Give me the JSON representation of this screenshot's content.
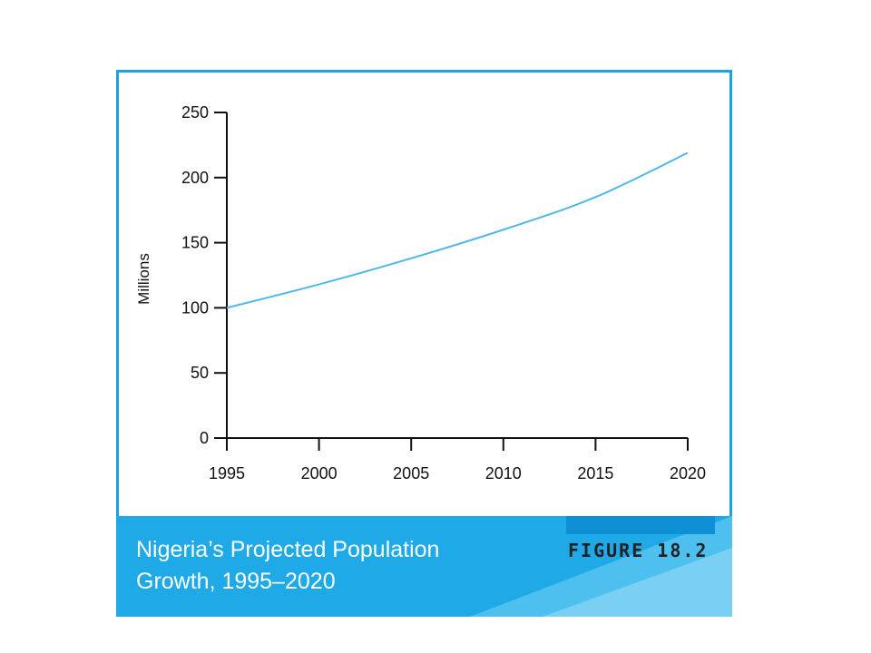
{
  "caption": {
    "line1": "Nigeria’s Projected Population",
    "line2": "Growth, 1995–2020"
  },
  "figure_label": "FIGURE 18.2",
  "colors": {
    "accent": "#1aa3e4",
    "banner": "#1fa9e6",
    "tab": "#0f8fd6",
    "line": "#4fb8ea",
    "axis": "#111111"
  },
  "chart_data": {
    "type": "line",
    "ylabel": "Millions",
    "xlabel": "",
    "x": [
      1995,
      2000,
      2005,
      2010,
      2015,
      2020
    ],
    "series": [
      {
        "values": [
          100,
          118,
          138,
          160,
          185,
          219
        ]
      }
    ],
    "xlim": [
      1995,
      2020
    ],
    "ylim": [
      0,
      250
    ],
    "xticks": [
      "1995",
      "2000",
      "2005",
      "2010",
      "2015",
      "2020"
    ],
    "yticks": [
      "0",
      "50",
      "100",
      "150",
      "200",
      "250"
    ],
    "grid": false
  }
}
